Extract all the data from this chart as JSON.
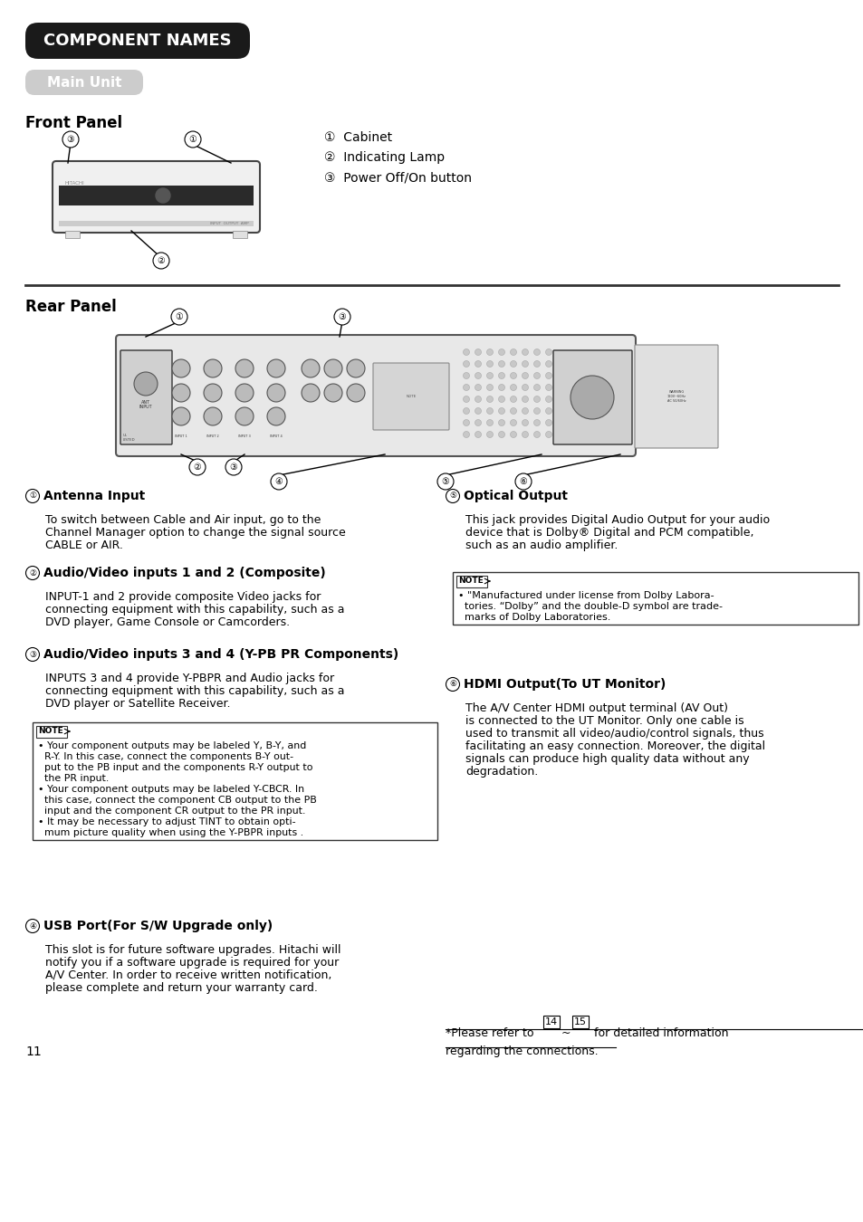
{
  "bg_color": "#ffffff",
  "title_banner_text": "COMPONENT NAMES",
  "title_banner_bg": "#1a1a1a",
  "title_banner_fg": "#ffffff",
  "subtitle_text": "Main Unit",
  "subtitle_bg": "#cccccc",
  "subtitle_fg": "#ffffff",
  "front_panel_label": "Front Panel",
  "rear_panel_label": "Rear Panel",
  "section1_title": "Antenna Input",
  "section1_body": "To switch between Cable and Air input, go to the\nChannel Manager option to change the signal source\nCABLE or AIR.",
  "section2_title": "Audio/Video inputs 1 and 2 (Composite)",
  "section2_body": "INPUT-1 and 2 provide composite Video jacks for\nconnecting equipment with this capability, such as a\nDVD player, Game Console or Camcorders.",
  "section3_title": "Audio/Video inputs 3 and 4 (Y-PB PR Components)",
  "section3_body": "INPUTS 3 and 4 provide Y-PBPR and Audio jacks for\nconnecting equipment with this capability, such as a\nDVD player or Satellite Receiver.",
  "section3_note": "• Your component outputs may be labeled Y, B-Y, and\n  R-Y. In this case, connect the components B-Y out-\n  put to the PB input and the components R-Y output to\n  the PR input.\n• Your component outputs may be labeled Y-CBCR. In\n  this case, connect the component CB output to the PB\n  input and the component CR output to the PR input.\n• It may be necessary to adjust TINT to obtain opti-\n  mum picture quality when using the Y-PBPR inputs .",
  "section4_title": "USB Port(For S/W Upgrade only)",
  "section4_body": "This slot is for future software upgrades. Hitachi will\nnotify you if a software upgrade is required for your\nA/V Center. In order to receive written notification,\nplease complete and return your warranty card.",
  "section5_title": "Optical Output",
  "section5_body": "This jack provides Digital Audio Output for your audio\ndevice that is Dolby® Digital and PCM compatible,\nsuch as an audio amplifier.",
  "section5_note": "• \"Manufactured under license from Dolby Labora-\n  tories. “Dolby” and the double-D symbol are trade-\n  marks of Dolby Laboratories.",
  "section6_title": "HDMI Output(To UT Monitor)",
  "section6_body_pre": "The ",
  "section6_body_bold": "A/V Center HDMI output",
  "section6_body_post": " terminal (AV Out)\nis connected to the UT Monitor. Only one cable is\nused to transmit all video/audio/control signals, thus\nfacilitating an easy connection. Moreover, the digital\nsignals can produce high quality data without any\ndegradation.",
  "footer_line1": "*Please refer to  14  ~  15  for detailed information",
  "footer_line2": "regarding the connections.",
  "page_num": "11"
}
